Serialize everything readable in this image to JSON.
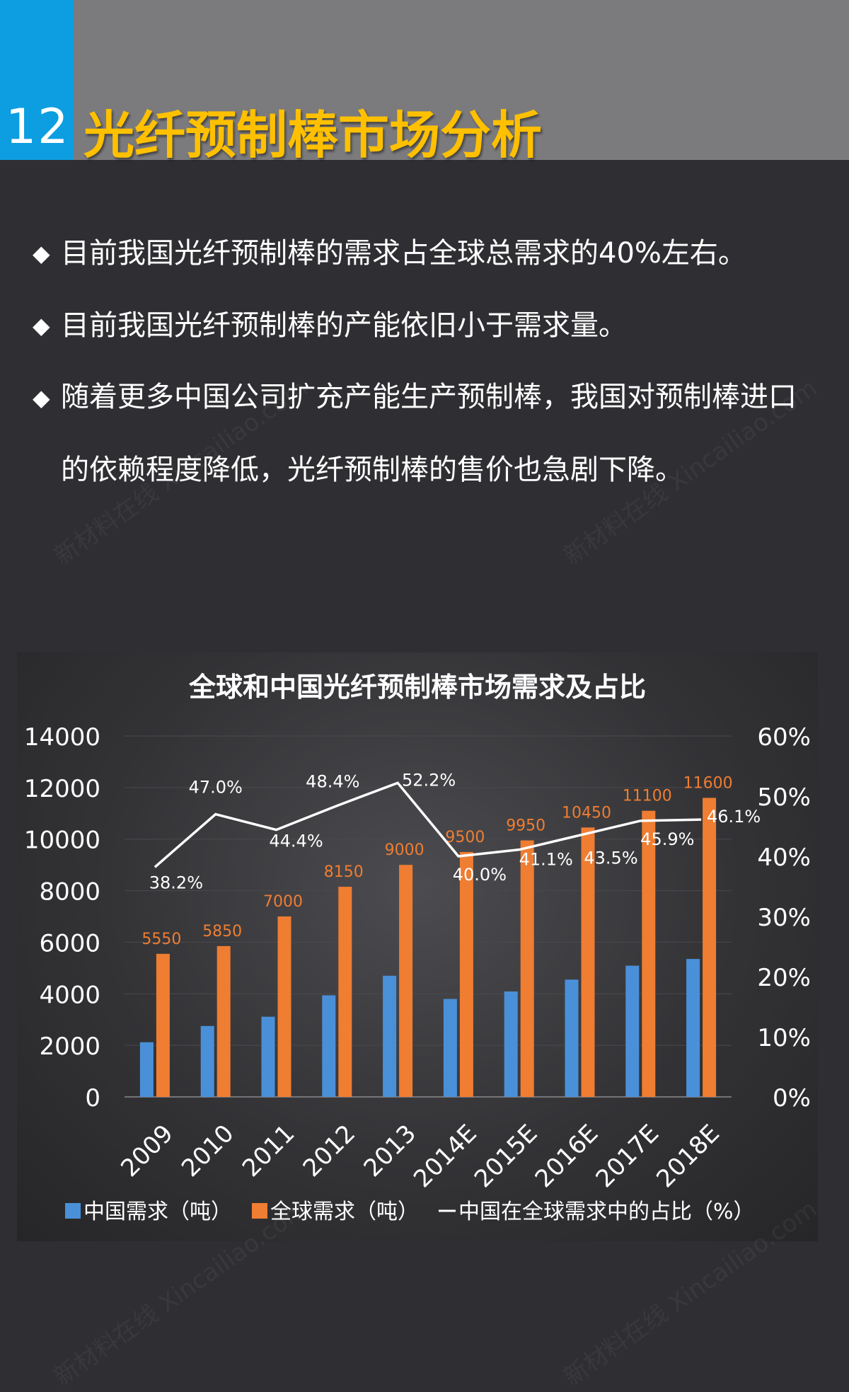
{
  "header": {
    "number": "12",
    "title": "光纤预制棒市场分析",
    "accent_color": "#0c9ee0",
    "title_color": "#ffc000"
  },
  "bullets": [
    {
      "icon": "diamond-icon",
      "text": "目前我国光纤预制棒的需求占全球总需求的40%左右。"
    },
    {
      "icon": "diamond-icon",
      "text": "目前我国光纤预制棒的产能依旧小于需求量。"
    },
    {
      "icon": "diamond-icon",
      "text": "随着更多中国公司扩充产能生产预制棒，我国对预制棒进口的依赖程度降低，光纤预制棒的售价也急剧下降。"
    }
  ],
  "chart_data": {
    "type": "bar",
    "title": "全球和中国光纤预制棒市场需求及占比",
    "categories": [
      "2009",
      "2010",
      "2011",
      "2012",
      "2013",
      "2014E",
      "2015E",
      "2016E",
      "2017E",
      "2018E"
    ],
    "series": [
      {
        "name": "中国需求（吨）",
        "type": "bar",
        "axis": "left",
        "color": "#4a90d9",
        "values": [
          2120,
          2750,
          3110,
          3940,
          4700,
          3800,
          4090,
          4550,
          5090,
          5350
        ]
      },
      {
        "name": "全球需求（吨）",
        "type": "bar",
        "axis": "left",
        "color": "#ef7d32",
        "values": [
          5550,
          5850,
          7000,
          8150,
          9000,
          9500,
          9950,
          10450,
          11100,
          11600
        ],
        "labels": [
          "5550",
          "5850",
          "7000",
          "8150",
          "9000",
          "9500",
          "9950",
          "10450",
          "11100",
          "11600"
        ]
      },
      {
        "name": "中国在全球需求中的占比（%）",
        "type": "line",
        "axis": "right",
        "color": "#ffffff",
        "values": [
          38.2,
          47.0,
          44.4,
          48.4,
          52.2,
          40.0,
          41.1,
          43.5,
          45.9,
          46.1
        ],
        "labels": [
          "38.2%",
          "47.0%",
          "44.4%",
          "48.4%",
          "52.2%",
          "40.0%",
          "41.1%",
          "43.5%",
          "45.9%",
          "46.1%"
        ]
      }
    ],
    "ylim_left": [
      0,
      14000
    ],
    "yticks_left": [
      "0",
      "2000",
      "4000",
      "6000",
      "8000",
      "10000",
      "12000",
      "14000"
    ],
    "ylim_right": [
      0,
      60
    ],
    "yticks_right": [
      "0%",
      "10%",
      "20%",
      "30%",
      "40%",
      "50%",
      "60%"
    ],
    "grid": true,
    "legend_position": "bottom",
    "label_color_global": "#ef7d32"
  },
  "watermark": {
    "text": "新材料在线 Xincailiao.com"
  }
}
